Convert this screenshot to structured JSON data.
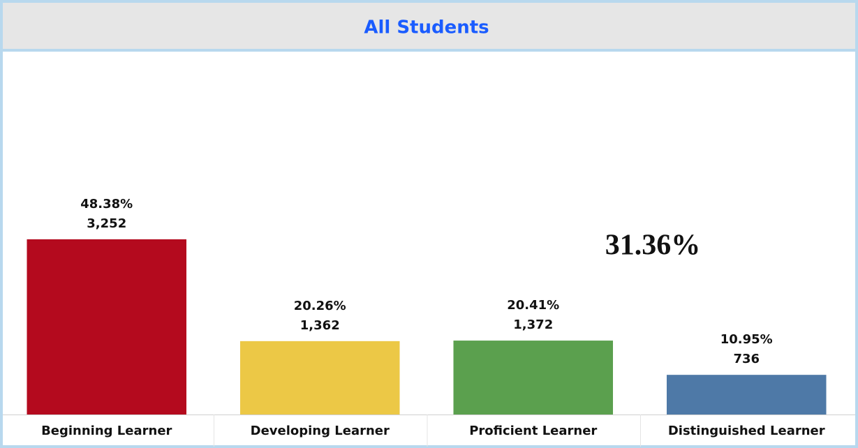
{
  "chart_data": {
    "type": "bar",
    "title": "All Students",
    "categories": [
      "Beginning Learner",
      "Developing Learner",
      "Proficient Learner",
      "Distinguished Learner"
    ],
    "values": [
      48.38,
      20.26,
      20.41,
      10.95
    ],
    "value_labels": [
      "48.38%",
      "20.26%",
      "20.41%",
      "10.95%"
    ],
    "counts": [
      3252,
      1362,
      1372,
      736
    ],
    "count_labels": [
      "3,252",
      "1,362",
      "1,372",
      "736"
    ],
    "colors": [
      "#b40a1e",
      "#ecc846",
      "#5ba04e",
      "#4e79a7"
    ],
    "ylim": [
      0,
      100
    ],
    "annotation": "31.36%"
  }
}
